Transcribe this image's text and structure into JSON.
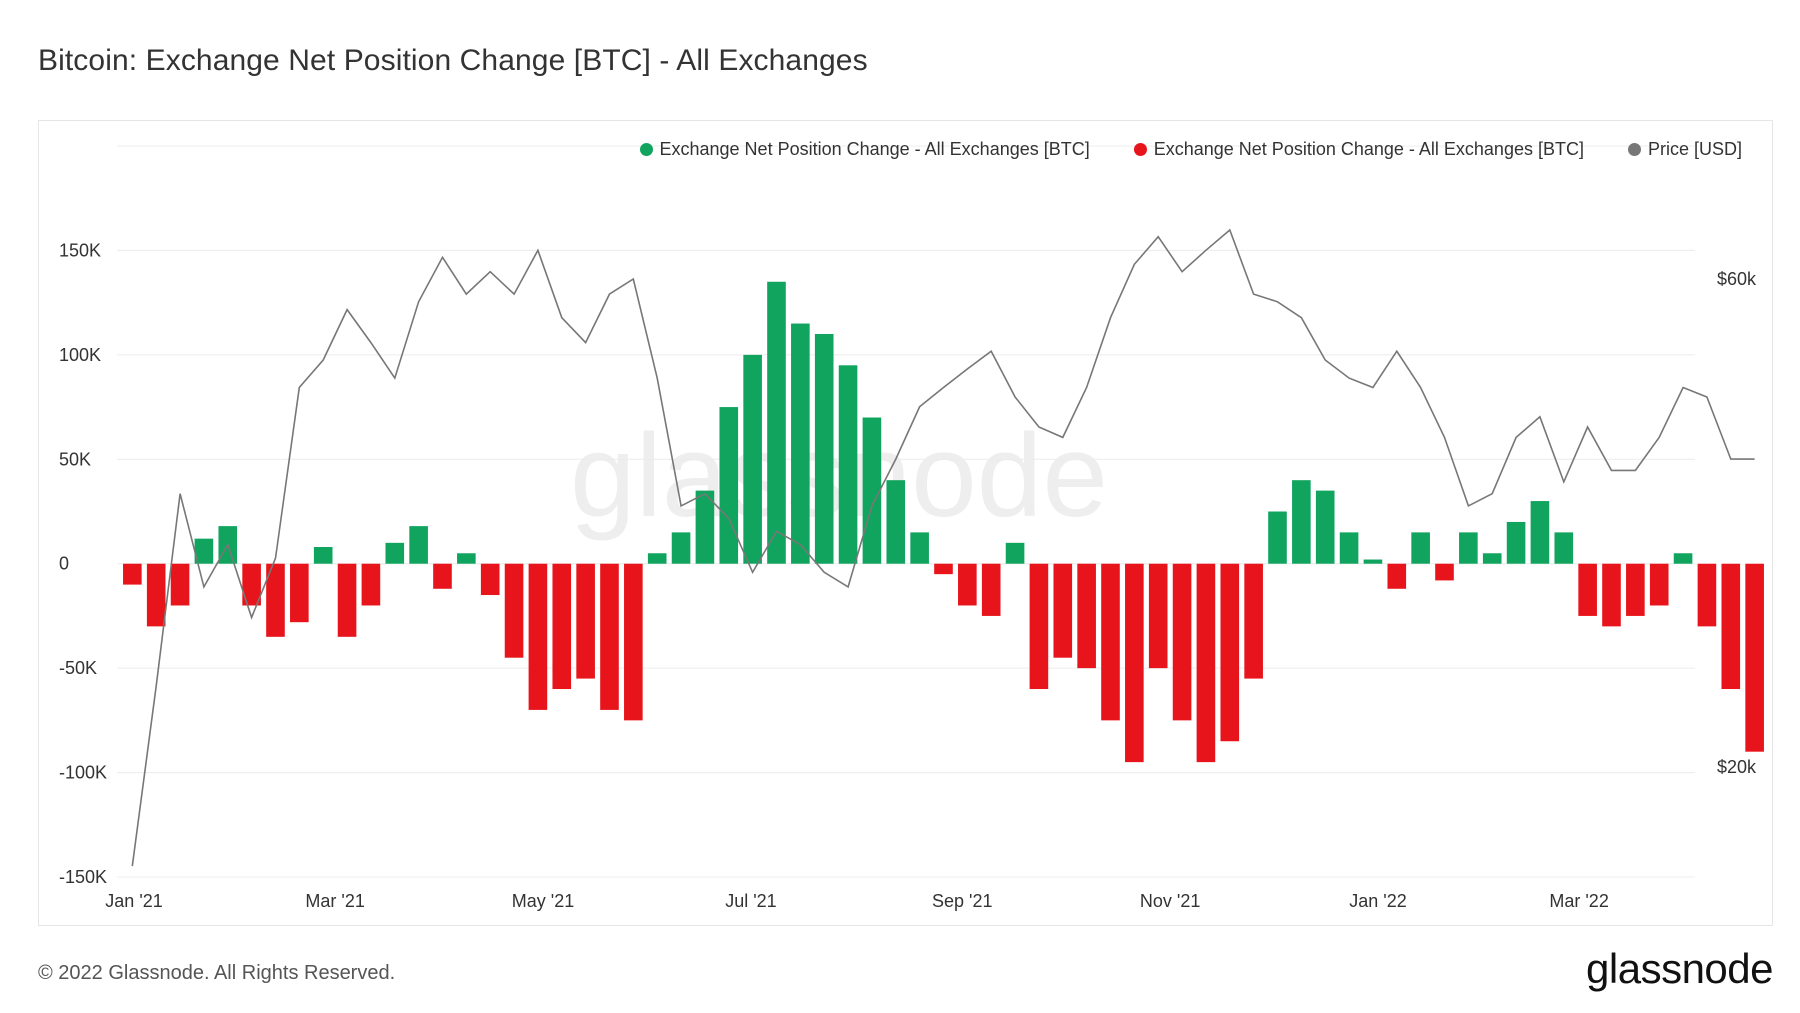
{
  "page": {
    "title": "Bitcoin: Exchange Net Position Change [BTC] - All Exchanges",
    "copyright": "© 2022 Glassnode. All Rights Reserved.",
    "logo": "glassnode",
    "watermark": "glassnode"
  },
  "chart_data": {
    "type": "bar",
    "legend": [
      {
        "label": "Exchange Net Position Change - All Exchanges [BTC]",
        "color": "#11a45f"
      },
      {
        "label": "Exchange Net Position Change - All Exchanges [BTC]",
        "color": "#e8141b"
      },
      {
        "label": "Price [USD]",
        "color": "#777777"
      }
    ],
    "legend_position": "top-right",
    "x_ticks": [
      "Jan '21",
      "Mar '21",
      "May '21",
      "Jul '21",
      "Sep '21",
      "Nov '21",
      "Jan '22",
      "Mar '22"
    ],
    "x_tick_dates": [
      "2021-01-01",
      "2021-03-01",
      "2021-05-01",
      "2021-07-01",
      "2021-09-01",
      "2021-11-01",
      "2022-01-01",
      "2022-03-01"
    ],
    "x_range": [
      "2020-12-27",
      "2022-04-04"
    ],
    "y_left": {
      "ticks": [
        150000,
        100000,
        50000,
        0,
        -50000,
        -100000,
        -150000
      ],
      "tick_labels": [
        "150K",
        "100K",
        "50K",
        "0",
        "-50K",
        "-100K",
        "-150K"
      ],
      "range": [
        -150000,
        200000
      ]
    },
    "y_right": {
      "ticks": [
        60000,
        20000
      ],
      "tick_labels": [
        "$60k",
        "$20k"
      ],
      "scale": "log"
    },
    "grid": true,
    "series": [
      {
        "name": "Exchange Net Position Change - All Exchanges [BTC]",
        "kind": "bar",
        "color_positive": "#11a45f",
        "color_negative": "#e8141b",
        "points": [
          [
            "2020-12-28",
            -10000
          ],
          [
            "2021-01-04",
            -30000
          ],
          [
            "2021-01-11",
            -20000
          ],
          [
            "2021-01-18",
            12000
          ],
          [
            "2021-01-25",
            18000
          ],
          [
            "2021-02-01",
            -20000
          ],
          [
            "2021-02-08",
            -35000
          ],
          [
            "2021-02-15",
            -28000
          ],
          [
            "2021-02-22",
            8000
          ],
          [
            "2021-03-01",
            -35000
          ],
          [
            "2021-03-08",
            -20000
          ],
          [
            "2021-03-15",
            10000
          ],
          [
            "2021-03-22",
            18000
          ],
          [
            "2021-03-29",
            -12000
          ],
          [
            "2021-04-05",
            5000
          ],
          [
            "2021-04-12",
            -15000
          ],
          [
            "2021-04-19",
            -45000
          ],
          [
            "2021-04-26",
            -70000
          ],
          [
            "2021-05-03",
            -60000
          ],
          [
            "2021-05-10",
            -55000
          ],
          [
            "2021-05-17",
            -70000
          ],
          [
            "2021-05-24",
            -75000
          ],
          [
            "2021-05-31",
            5000
          ],
          [
            "2021-06-07",
            15000
          ],
          [
            "2021-06-14",
            35000
          ],
          [
            "2021-06-21",
            75000
          ],
          [
            "2021-06-28",
            100000
          ],
          [
            "2021-07-05",
            135000
          ],
          [
            "2021-07-12",
            115000
          ],
          [
            "2021-07-19",
            110000
          ],
          [
            "2021-07-26",
            95000
          ],
          [
            "2021-08-02",
            70000
          ],
          [
            "2021-08-09",
            40000
          ],
          [
            "2021-08-16",
            15000
          ],
          [
            "2021-08-23",
            -5000
          ],
          [
            "2021-08-30",
            -20000
          ],
          [
            "2021-09-06",
            -25000
          ],
          [
            "2021-09-13",
            10000
          ],
          [
            "2021-09-20",
            -60000
          ],
          [
            "2021-09-27",
            -45000
          ],
          [
            "2021-10-04",
            -50000
          ],
          [
            "2021-10-11",
            -75000
          ],
          [
            "2021-10-18",
            -95000
          ],
          [
            "2021-10-25",
            -50000
          ],
          [
            "2021-11-01",
            -75000
          ],
          [
            "2021-11-08",
            -95000
          ],
          [
            "2021-11-15",
            -85000
          ],
          [
            "2021-11-22",
            -55000
          ],
          [
            "2021-11-29",
            25000
          ],
          [
            "2021-12-06",
            40000
          ],
          [
            "2021-12-13",
            35000
          ],
          [
            "2021-12-20",
            15000
          ],
          [
            "2021-12-27",
            2000
          ],
          [
            "2022-01-03",
            -12000
          ],
          [
            "2022-01-10",
            15000
          ],
          [
            "2022-01-17",
            -8000
          ],
          [
            "2022-01-24",
            15000
          ],
          [
            "2022-01-31",
            5000
          ],
          [
            "2022-02-07",
            20000
          ],
          [
            "2022-02-14",
            30000
          ],
          [
            "2022-02-21",
            15000
          ],
          [
            "2022-02-28",
            -25000
          ],
          [
            "2022-03-07",
            -30000
          ],
          [
            "2022-03-14",
            -25000
          ],
          [
            "2022-03-21",
            -20000
          ],
          [
            "2022-03-28",
            5000
          ],
          [
            "2022-04-04",
            -30000
          ],
          [
            "2022-04-11",
            -60000
          ],
          [
            "2022-04-18",
            -90000
          ]
        ]
      },
      {
        "name": "Price [USD]",
        "kind": "line",
        "color": "#777777",
        "axis": "right",
        "points": [
          [
            "2020-12-28",
            16000
          ],
          [
            "2021-01-04",
            24000
          ],
          [
            "2021-01-11",
            37000
          ],
          [
            "2021-01-18",
            30000
          ],
          [
            "2021-01-25",
            33000
          ],
          [
            "2021-02-01",
            28000
          ],
          [
            "2021-02-08",
            32000
          ],
          [
            "2021-02-15",
            47000
          ],
          [
            "2021-02-22",
            50000
          ],
          [
            "2021-03-01",
            56000
          ],
          [
            "2021-03-08",
            52000
          ],
          [
            "2021-03-15",
            48000
          ],
          [
            "2021-03-22",
            57000
          ],
          [
            "2021-03-29",
            63000
          ],
          [
            "2021-04-05",
            58000
          ],
          [
            "2021-04-12",
            61000
          ],
          [
            "2021-04-19",
            58000
          ],
          [
            "2021-04-26",
            64000
          ],
          [
            "2021-05-03",
            55000
          ],
          [
            "2021-05-10",
            52000
          ],
          [
            "2021-05-17",
            58000
          ],
          [
            "2021-05-24",
            60000
          ],
          [
            "2021-05-31",
            48000
          ],
          [
            "2021-06-07",
            36000
          ],
          [
            "2021-06-14",
            37000
          ],
          [
            "2021-06-21",
            35000
          ],
          [
            "2021-06-28",
            31000
          ],
          [
            "2021-07-05",
            34000
          ],
          [
            "2021-07-12",
            33000
          ],
          [
            "2021-07-19",
            31000
          ],
          [
            "2021-07-26",
            30000
          ],
          [
            "2021-08-02",
            36000
          ],
          [
            "2021-08-09",
            40000
          ],
          [
            "2021-08-16",
            45000
          ],
          [
            "2021-08-23",
            47000
          ],
          [
            "2021-08-30",
            49000
          ],
          [
            "2021-09-06",
            51000
          ],
          [
            "2021-09-13",
            46000
          ],
          [
            "2021-09-20",
            43000
          ],
          [
            "2021-09-27",
            42000
          ],
          [
            "2021-10-04",
            47000
          ],
          [
            "2021-10-11",
            55000
          ],
          [
            "2021-10-18",
            62000
          ],
          [
            "2021-10-25",
            66000
          ],
          [
            "2021-11-01",
            61000
          ],
          [
            "2021-11-08",
            64000
          ],
          [
            "2021-11-15",
            67000
          ],
          [
            "2021-11-22",
            58000
          ],
          [
            "2021-11-29",
            57000
          ],
          [
            "2021-12-06",
            55000
          ],
          [
            "2021-12-13",
            50000
          ],
          [
            "2021-12-20",
            48000
          ],
          [
            "2021-12-27",
            47000
          ],
          [
            "2022-01-03",
            51000
          ],
          [
            "2022-01-10",
            47000
          ],
          [
            "2022-01-17",
            42000
          ],
          [
            "2022-01-24",
            36000
          ],
          [
            "2022-01-31",
            37000
          ],
          [
            "2022-02-07",
            42000
          ],
          [
            "2022-02-14",
            44000
          ],
          [
            "2022-02-21",
            38000
          ],
          [
            "2022-02-28",
            43000
          ],
          [
            "2022-03-07",
            39000
          ],
          [
            "2022-03-14",
            39000
          ],
          [
            "2022-03-21",
            42000
          ],
          [
            "2022-03-28",
            47000
          ],
          [
            "2022-04-04",
            46000
          ],
          [
            "2022-04-11",
            40000
          ],
          [
            "2022-04-18",
            40000
          ]
        ]
      }
    ]
  }
}
